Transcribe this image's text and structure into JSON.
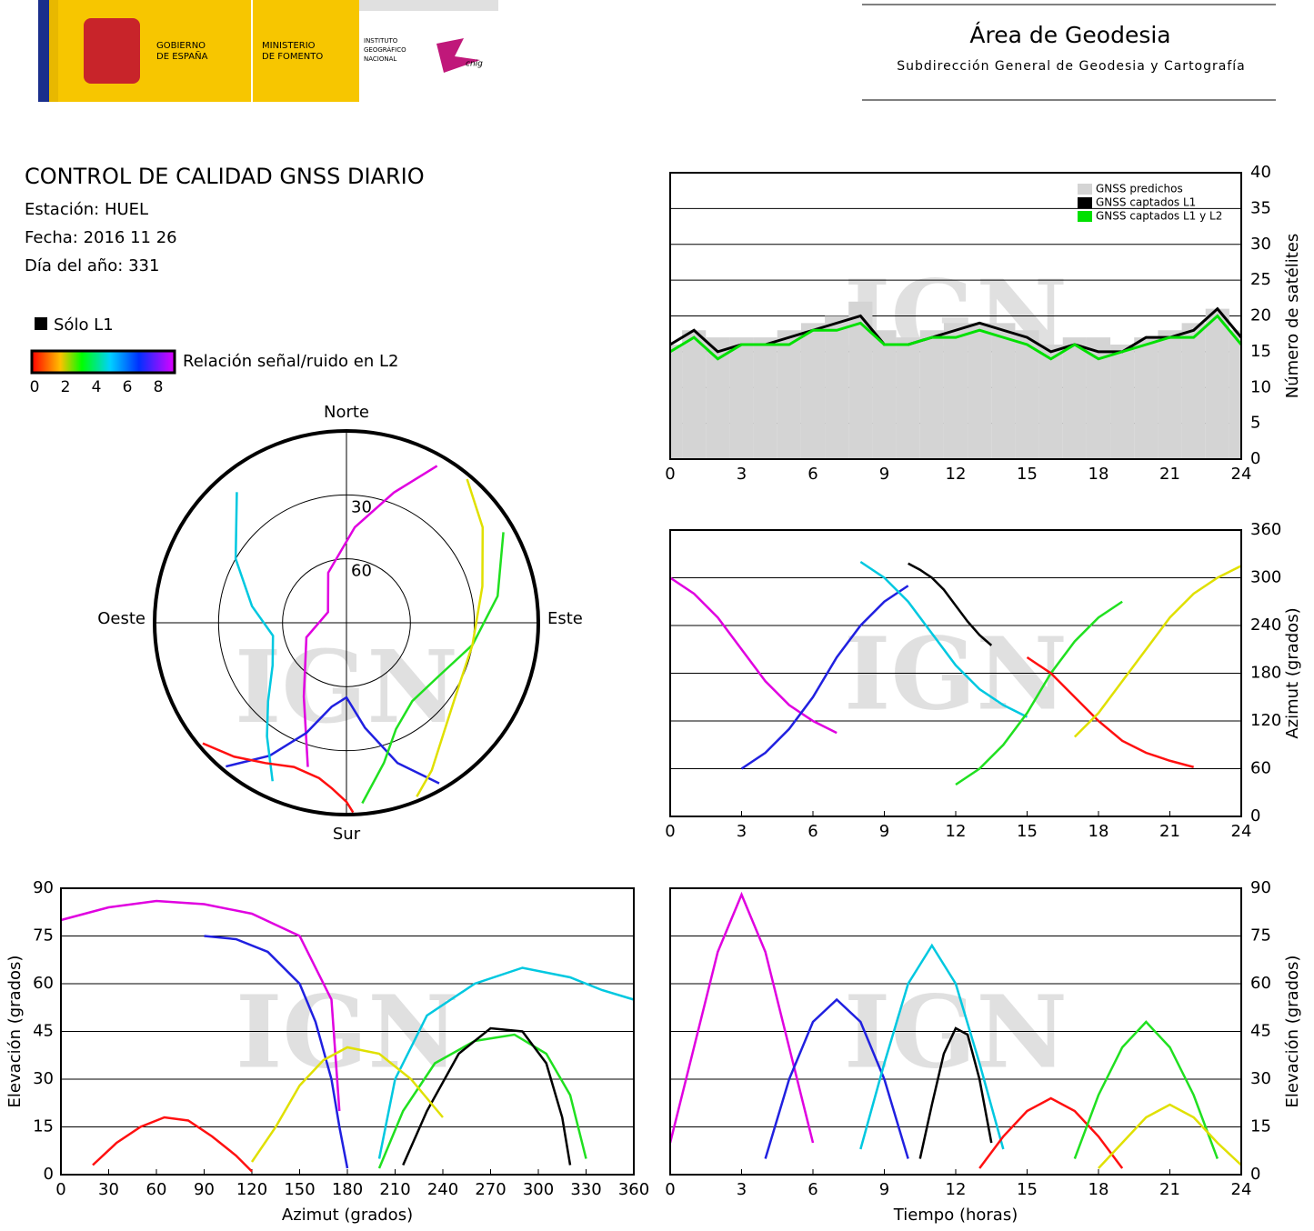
{
  "header": {
    "gov": [
      "GOBIERNO",
      "DE ESPAÑA"
    ],
    "ministry": [
      "MINISTERIO",
      "DE FOMENTO"
    ],
    "institute": [
      "INSTITUTO",
      "GEOGRÁFICO",
      "NACIONAL"
    ],
    "cnig": "cnig",
    "area": "Área de Geodesia",
    "subdir": "Subdirección General de Geodesia y Cartografía"
  },
  "info": {
    "title": "CONTROL DE CALIDAD GNSS DIARIO",
    "station": "Estación: HUEL",
    "date": "Fecha: 2016 11 26",
    "doy": "Día del año: 331"
  },
  "legend": {
    "l1": "Sólo L1",
    "snr": "Relación señal/ruido en L2",
    "colorbar_ticks": [
      0,
      2,
      4,
      6,
      8
    ],
    "colorbar_lim": [
      0,
      9
    ]
  },
  "chart_data": [
    {
      "type": "line",
      "watermark": "IGN",
      "ylabel": "Número de satélites",
      "yaxis_side": "right",
      "grid": true,
      "legend": "upper right",
      "x": [
        0,
        1,
        2,
        3,
        4,
        5,
        6,
        7,
        8,
        9,
        10,
        11,
        12,
        13,
        14,
        15,
        16,
        17,
        18,
        19,
        20,
        21,
        22,
        23,
        24
      ],
      "xlim": [
        0,
        24
      ],
      "xticks": [
        0,
        3,
        6,
        9,
        12,
        15,
        18,
        21,
        24
      ],
      "ylim": [
        0,
        40
      ],
      "yticks": [
        0,
        5,
        10,
        15,
        20,
        25,
        30,
        35,
        40
      ],
      "series": [
        {
          "name": "GNSS predichos",
          "color": "#d4d4d4",
          "chart_type": "bar",
          "values": [
            16,
            18,
            17,
            17,
            17,
            18,
            19,
            20,
            22,
            18,
            17,
            18,
            19,
            19,
            19,
            18,
            16,
            17,
            17,
            16,
            17,
            18,
            19,
            21,
            18
          ]
        },
        {
          "name": "GNSS captados L1",
          "color": "#000000",
          "chart_type": "line",
          "values": [
            16,
            18,
            15,
            16,
            16,
            17,
            18,
            19,
            20,
            16,
            16,
            17,
            18,
            19,
            18,
            17,
            15,
            16,
            15,
            15,
            17,
            17,
            18,
            21,
            17
          ]
        },
        {
          "name": "GNSS captados L1 y L2",
          "color": "#00e000",
          "chart_type": "line",
          "values": [
            15,
            17,
            14,
            16,
            16,
            16,
            18,
            18,
            19,
            16,
            16,
            17,
            17,
            18,
            17,
            16,
            14,
            16,
            14,
            15,
            16,
            17,
            17,
            20,
            16
          ]
        }
      ]
    },
    {
      "type": "polar",
      "watermark": "IGN",
      "north": "Norte",
      "south": "Sur",
      "east": "Este",
      "west": "Oeste",
      "rings": [
        30,
        60
      ],
      "rlim": [
        0,
        90
      ],
      "series": [
        {
          "color": "#e000e0",
          "x": [
            30,
            20,
            5,
            340,
            300,
            250,
            210,
            195
          ],
          "values": [
            5,
            25,
            45,
            65,
            80,
            70,
            50,
            20
          ]
        },
        {
          "color": "#2020e0",
          "x": [
            150,
            160,
            170,
            180,
            190,
            200,
            210,
            220
          ],
          "values": [
            3,
            20,
            40,
            55,
            50,
            35,
            18,
            2
          ]
        },
        {
          "color": "#00c8e0",
          "x": [
            320,
            300,
            280,
            260,
            240,
            225,
            215,
            205
          ],
          "values": [
            10,
            30,
            45,
            55,
            50,
            38,
            25,
            8
          ]
        },
        {
          "color": "#20e020",
          "x": [
            60,
            80,
            100,
            120,
            140,
            155,
            165,
            175
          ],
          "values": [
            5,
            18,
            30,
            40,
            42,
            35,
            22,
            5
          ]
        },
        {
          "color": "#ff1010",
          "x": [
            230,
            220,
            210,
            200,
            190,
            185,
            180,
            178
          ],
          "values": [
            2,
            8,
            14,
            18,
            16,
            12,
            6,
            1
          ]
        },
        {
          "color": "#e0e000",
          "x": [
            40,
            55,
            75,
            100,
            125,
            140,
            150,
            158
          ],
          "values": [
            2,
            12,
            24,
            30,
            28,
            20,
            10,
            2
          ]
        }
      ]
    },
    {
      "type": "scatter",
      "watermark": "IGN",
      "ylabel": "Azimut (grados)",
      "yaxis_side": "right",
      "grid": true,
      "xlim": [
        0,
        24
      ],
      "xticks": [
        0,
        3,
        6,
        9,
        12,
        15,
        18,
        21,
        24
      ],
      "ylim": [
        0,
        360
      ],
      "yticks": [
        0,
        60,
        120,
        180,
        240,
        300,
        360
      ],
      "series": [
        {
          "color": "#e000e0",
          "x": [
            0,
            1,
            2,
            3,
            4,
            5,
            6,
            7
          ],
          "values": [
            300,
            280,
            250,
            210,
            170,
            140,
            120,
            105
          ]
        },
        {
          "color": "#2020e0",
          "x": [
            3,
            4,
            5,
            6,
            7,
            8,
            9,
            10
          ],
          "values": [
            60,
            80,
            110,
            150,
            200,
            240,
            270,
            290
          ]
        },
        {
          "color": "#00c8e0",
          "x": [
            8,
            9,
            10,
            11,
            12,
            13,
            14,
            15
          ],
          "values": [
            320,
            300,
            270,
            230,
            190,
            160,
            140,
            125
          ]
        },
        {
          "color": "#20e020",
          "x": [
            12,
            13,
            14,
            15,
            16,
            17,
            18,
            19
          ],
          "values": [
            40,
            60,
            90,
            130,
            180,
            220,
            250,
            270
          ]
        },
        {
          "color": "#ff1010",
          "x": [
            15,
            16,
            17,
            18,
            19,
            20,
            21,
            22
          ],
          "values": [
            200,
            180,
            150,
            120,
            95,
            80,
            70,
            62
          ]
        },
        {
          "color": "#000000",
          "x": [
            10,
            10.5,
            11,
            11.5,
            12,
            12.5,
            13,
            13.5
          ],
          "values": [
            318,
            310,
            300,
            285,
            265,
            245,
            228,
            215
          ]
        },
        {
          "color": "#e0e000",
          "x": [
            17,
            18,
            19,
            20,
            21,
            22,
            23,
            24
          ],
          "values": [
            100,
            130,
            170,
            210,
            250,
            280,
            300,
            315
          ]
        }
      ]
    },
    {
      "type": "scatter",
      "watermark": "IGN",
      "xlabel": "Azimut (grados)",
      "ylabel": "Elevación (grados)",
      "yaxis_side": "left",
      "grid": true,
      "xlim": [
        0,
        360
      ],
      "xticks": [
        0,
        30,
        60,
        90,
        120,
        150,
        180,
        210,
        240,
        270,
        300,
        330,
        360
      ],
      "ylim": [
        0,
        90
      ],
      "yticks": [
        0,
        15,
        30,
        45,
        60,
        75,
        90
      ],
      "series": [
        {
          "color": "#e000e0",
          "x": [
            0,
            30,
            60,
            90,
            120,
            150,
            170,
            175
          ],
          "values": [
            80,
            84,
            86,
            85,
            82,
            75,
            55,
            20
          ]
        },
        {
          "color": "#2020e0",
          "x": [
            90,
            110,
            130,
            150,
            160,
            170,
            175,
            180
          ],
          "values": [
            75,
            74,
            70,
            60,
            48,
            30,
            15,
            2
          ]
        },
        {
          "color": "#00c8e0",
          "x": [
            200,
            210,
            230,
            260,
            290,
            320,
            340,
            360
          ],
          "values": [
            5,
            30,
            50,
            60,
            65,
            62,
            58,
            55
          ]
        },
        {
          "color": "#20e020",
          "x": [
            200,
            215,
            235,
            260,
            285,
            305,
            320,
            330
          ],
          "values": [
            2,
            20,
            35,
            42,
            44,
            38,
            25,
            5
          ]
        },
        {
          "color": "#ff1010",
          "x": [
            20,
            35,
            50,
            65,
            80,
            95,
            110,
            120
          ],
          "values": [
            3,
            10,
            15,
            18,
            17,
            12,
            6,
            1
          ]
        },
        {
          "color": "#000000",
          "x": [
            215,
            230,
            250,
            270,
            290,
            305,
            315,
            320
          ],
          "values": [
            3,
            20,
            38,
            46,
            45,
            35,
            18,
            3
          ]
        },
        {
          "color": "#e0e000",
          "x": [
            120,
            135,
            150,
            165,
            180,
            200,
            220,
            240
          ],
          "values": [
            4,
            15,
            28,
            36,
            40,
            38,
            30,
            18
          ]
        }
      ]
    },
    {
      "type": "scatter",
      "watermark": "IGN",
      "xlabel": "Tiempo (horas)",
      "ylabel": "Elevación (grados)",
      "yaxis_side": "right",
      "grid": true,
      "xlim": [
        0,
        24
      ],
      "xticks": [
        0,
        3,
        6,
        9,
        12,
        15,
        18,
        21,
        24
      ],
      "ylim": [
        0,
        90
      ],
      "yticks": [
        0,
        15,
        30,
        45,
        60,
        75,
        90
      ],
      "series": [
        {
          "color": "#e000e0",
          "x": [
            0,
            1,
            2,
            3,
            4,
            5,
            6
          ],
          "values": [
            10,
            40,
            70,
            88,
            70,
            40,
            10
          ]
        },
        {
          "color": "#2020e0",
          "x": [
            4,
            5,
            6,
            7,
            8,
            9,
            10
          ],
          "values": [
            5,
            30,
            48,
            55,
            48,
            30,
            5
          ]
        },
        {
          "color": "#00c8e0",
          "x": [
            8,
            9,
            10,
            11,
            12,
            13,
            14
          ],
          "values": [
            8,
            35,
            60,
            72,
            60,
            35,
            8
          ]
        },
        {
          "color": "#000000",
          "x": [
            10.5,
            11,
            11.5,
            12,
            12.5,
            13,
            13.5
          ],
          "values": [
            5,
            22,
            38,
            46,
            44,
            30,
            10
          ]
        },
        {
          "color": "#ff1010",
          "x": [
            13,
            14,
            15,
            16,
            17,
            18,
            19
          ],
          "values": [
            2,
            12,
            20,
            24,
            20,
            12,
            2
          ]
        },
        {
          "color": "#20e020",
          "x": [
            17,
            18,
            19,
            20,
            21,
            22,
            23
          ],
          "values": [
            5,
            25,
            40,
            48,
            40,
            25,
            5
          ]
        },
        {
          "color": "#e0e000",
          "x": [
            18,
            19,
            20,
            21,
            22,
            23,
            24
          ],
          "values": [
            2,
            10,
            18,
            22,
            18,
            10,
            3
          ]
        }
      ]
    }
  ]
}
